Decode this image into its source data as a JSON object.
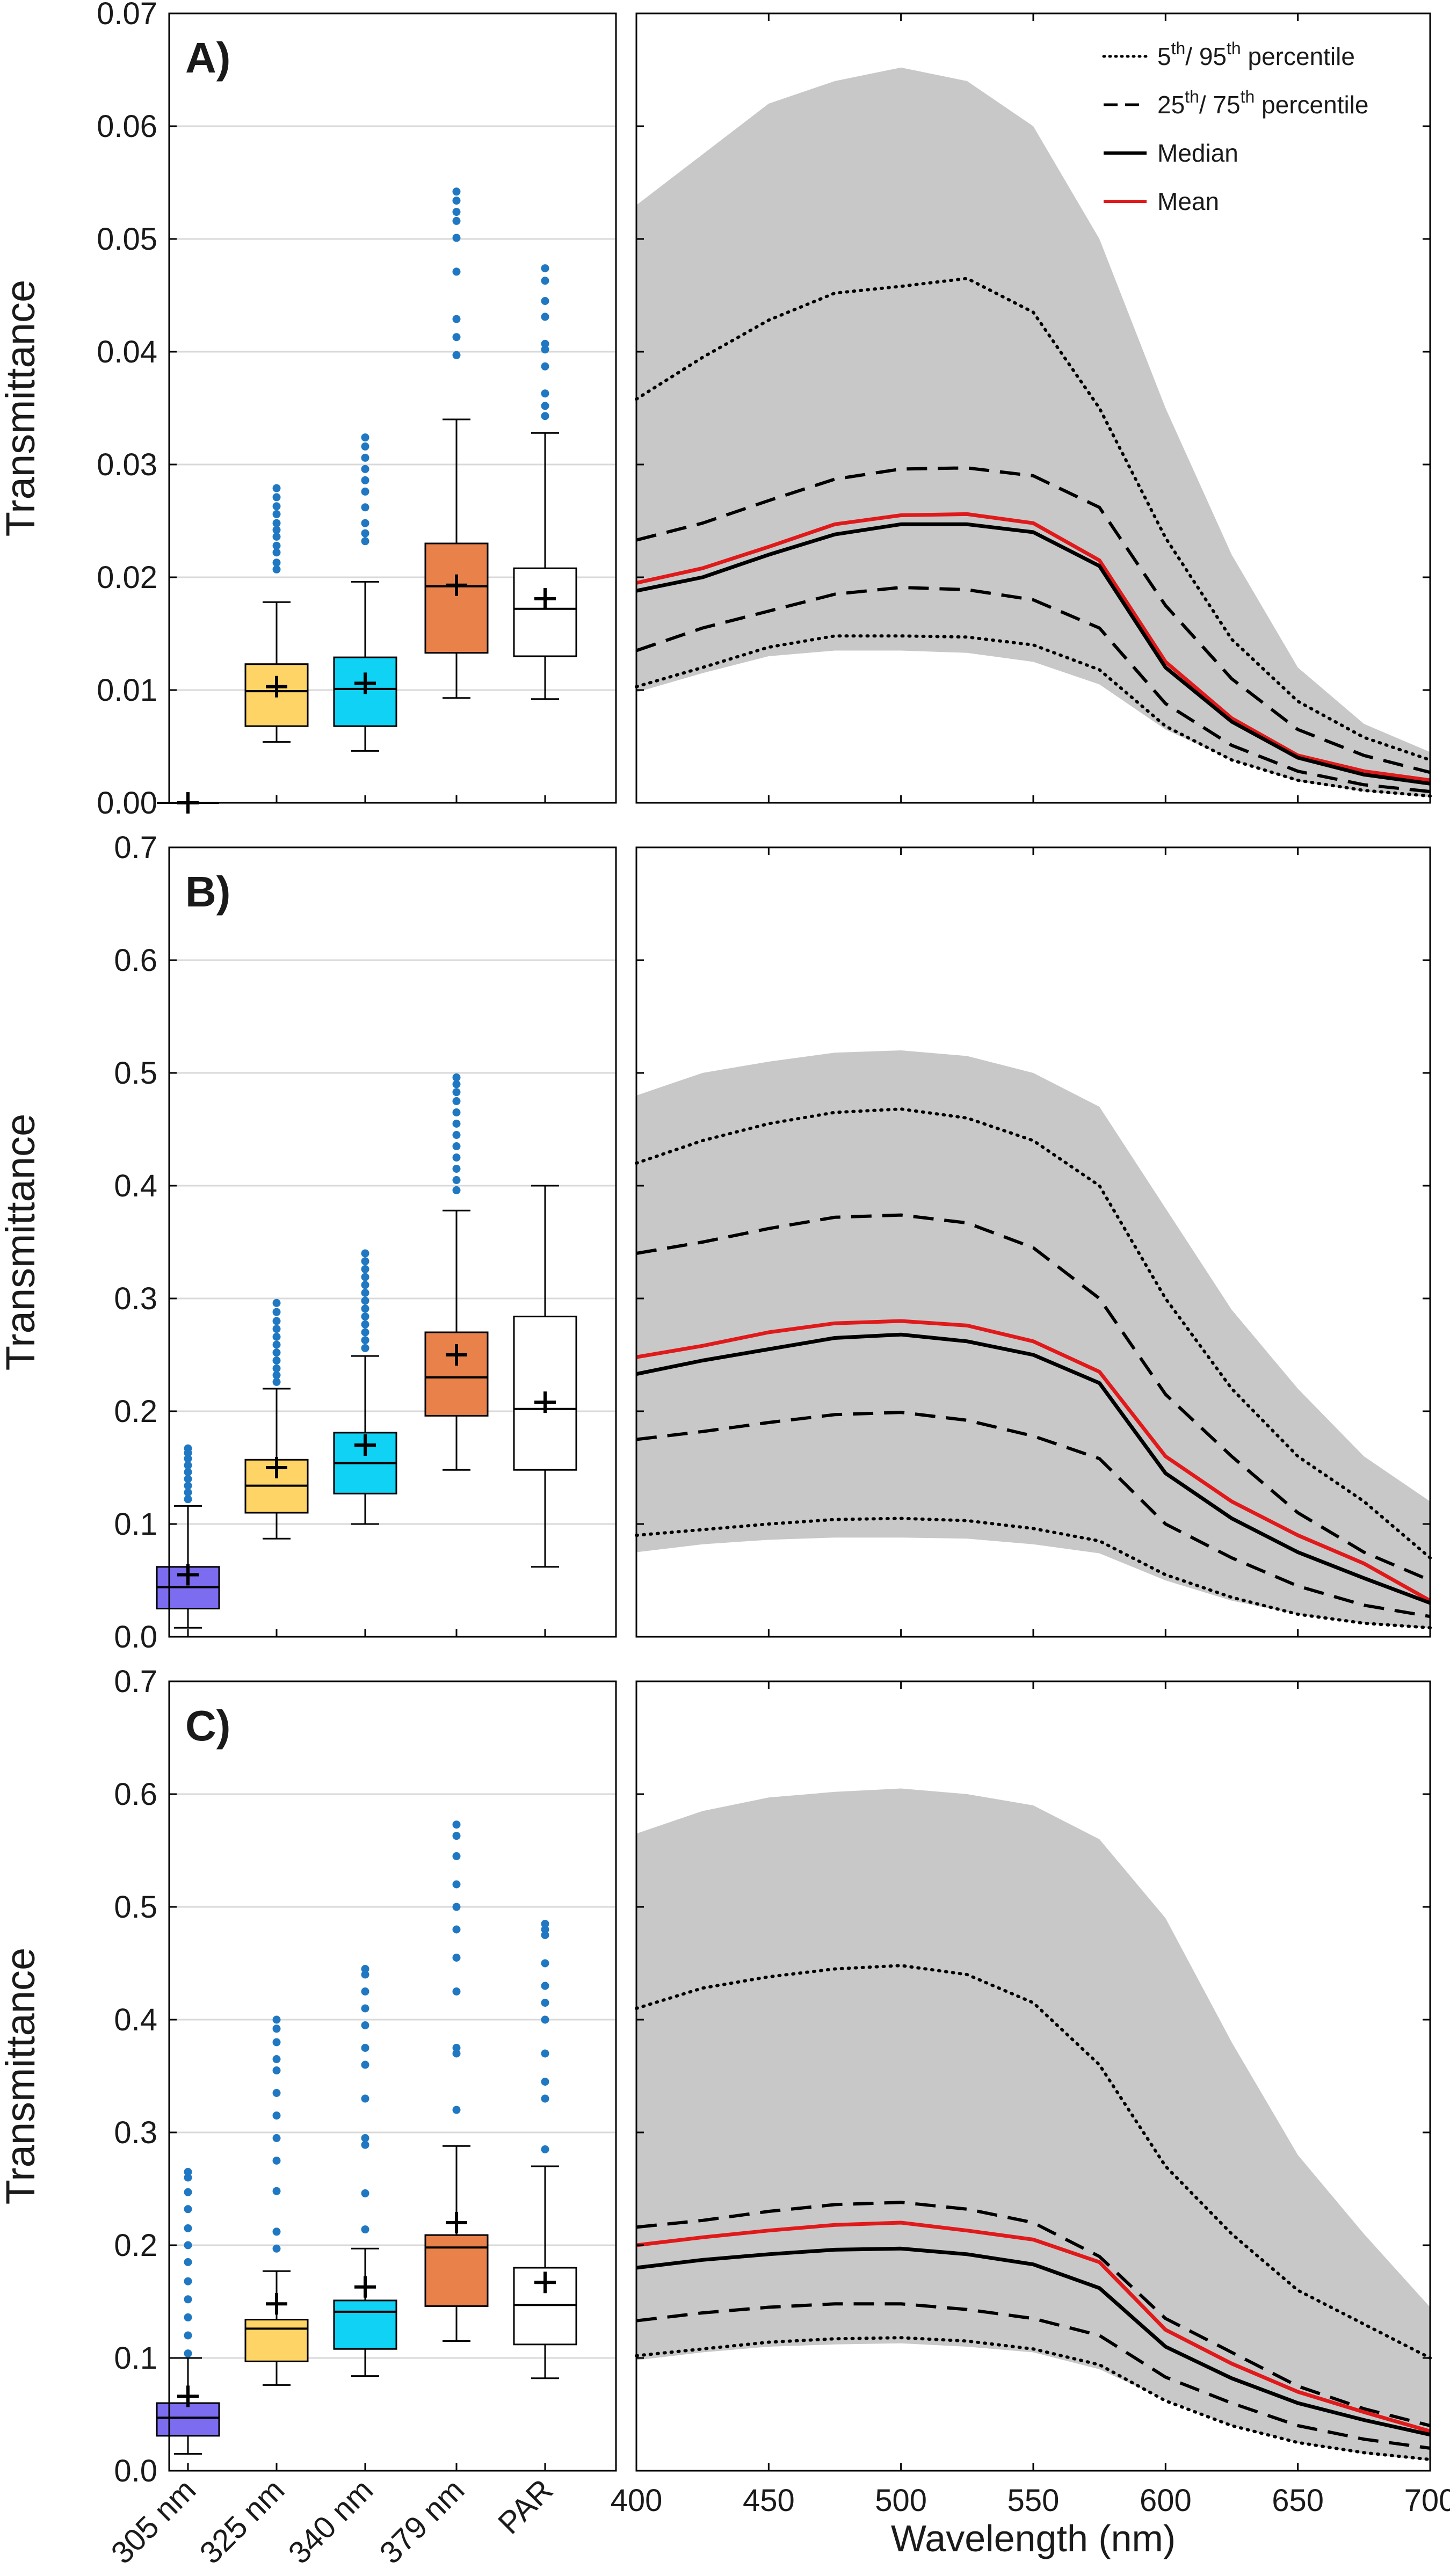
{
  "colors": {
    "band": "#c8c8c8",
    "mean": "#e0191b",
    "line": "#000000",
    "grid": "#d9d9d9",
    "outlier": "#1f78c1",
    "box_305": "#7b6cf0",
    "box_325": "#ffd466",
    "box_340": "#0fd2f5",
    "box_379": "#e8824a",
    "box_par": "#ffffff"
  },
  "legend": {
    "p5_95": {
      "s1": "5",
      "s1sup": "th",
      "s2": "/ 95",
      "s2sup": "th",
      "s3": " percentile"
    },
    "p25_75": {
      "s1": "25",
      "s1sup": "th",
      "s2": "/ 75",
      "s2sup": "th",
      "s3": " percentile"
    },
    "median": "Median",
    "mean": "Mean"
  },
  "categories": [
    "305 nm",
    "325 nm",
    "340 nm",
    "379 nm",
    "PAR"
  ],
  "category_colors": [
    "box_305",
    "box_325",
    "box_340",
    "box_379",
    "box_par"
  ],
  "xlabel_right": "Wavelength (nm)",
  "ylabel": "Transmittance",
  "chart_data": [
    {
      "panel": "A)",
      "type": "box",
      "ylabel": "Transmittance",
      "ylim": [
        0,
        0.07
      ],
      "yticks": [
        "0.00",
        "0.01",
        "0.02",
        "0.03",
        "0.04",
        "0.05",
        "0.06",
        "0.07"
      ],
      "ytick_values": [
        0,
        0.01,
        0.02,
        0.03,
        0.04,
        0.05,
        0.06,
        0.07
      ],
      "boxes": [
        {
          "category": "305 nm",
          "whisker_low": 0.0,
          "q1": 0.0,
          "median": 0.0,
          "q3": 0.0,
          "whisker_high": 0.0,
          "mean": 0.0,
          "outliers": []
        },
        {
          "category": "325 nm",
          "whisker_low": 0.0054,
          "q1": 0.0068,
          "median": 0.0099,
          "q3": 0.0123,
          "whisker_high": 0.0178,
          "mean": 0.0103,
          "outliers": [
            0.0207,
            0.0213,
            0.0222,
            0.0228,
            0.0236,
            0.0242,
            0.0248,
            0.0256,
            0.0263,
            0.0271,
            0.0279
          ]
        },
        {
          "category": "340 nm",
          "whisker_low": 0.0046,
          "q1": 0.0068,
          "median": 0.0101,
          "q3": 0.0129,
          "whisker_high": 0.0196,
          "mean": 0.0106,
          "outliers": [
            0.0232,
            0.0239,
            0.0248,
            0.0262,
            0.0276,
            0.0286,
            0.0296,
            0.0306,
            0.0316,
            0.0324
          ]
        },
        {
          "category": "379 nm",
          "whisker_low": 0.0093,
          "q1": 0.0133,
          "median": 0.0192,
          "q3": 0.023,
          "whisker_high": 0.034,
          "mean": 0.0193,
          "outliers": [
            0.0397,
            0.0413,
            0.0429,
            0.0471,
            0.0501,
            0.0516,
            0.0524,
            0.0534,
            0.0542
          ]
        },
        {
          "category": "PAR",
          "whisker_low": 0.0092,
          "q1": 0.013,
          "median": 0.0172,
          "q3": 0.0208,
          "whisker_high": 0.0328,
          "mean": 0.0181,
          "outliers": [
            0.0343,
            0.0352,
            0.0363,
            0.0387,
            0.0402,
            0.0407,
            0.0431,
            0.0445,
            0.0463,
            0.0474
          ]
        }
      ]
    },
    {
      "panel": "A)",
      "type": "line",
      "xlabel": "Wavelength (nm)",
      "xlim": [
        400,
        700
      ],
      "ylim": [
        0,
        0.07
      ],
      "x": [
        400,
        425,
        450,
        475,
        500,
        525,
        550,
        575,
        600,
        625,
        650,
        675,
        700
      ],
      "series": [
        {
          "name": "band_upper",
          "values": [
            0.053,
            0.0575,
            0.062,
            0.064,
            0.0652,
            0.064,
            0.06,
            0.05,
            0.035,
            0.022,
            0.012,
            0.007,
            0.0045
          ]
        },
        {
          "name": "band_lower",
          "values": [
            0.0098,
            0.0115,
            0.013,
            0.0135,
            0.0135,
            0.0133,
            0.0125,
            0.0105,
            0.0065,
            0.0038,
            0.0019,
            0.001,
            0.0005
          ]
        },
        {
          "name": "5th/95th percentile upper",
          "style": "dotted",
          "values": [
            0.0358,
            0.0395,
            0.0428,
            0.0452,
            0.0458,
            0.0465,
            0.0435,
            0.035,
            0.0235,
            0.0145,
            0.009,
            0.0058,
            0.0038
          ]
        },
        {
          "name": "25th/75th percentile upper",
          "style": "dashed",
          "values": [
            0.0233,
            0.0248,
            0.0268,
            0.0287,
            0.0296,
            0.0297,
            0.029,
            0.0262,
            0.0175,
            0.011,
            0.0065,
            0.0042,
            0.0027
          ]
        },
        {
          "name": "Mean",
          "style": "mean",
          "values": [
            0.0195,
            0.0208,
            0.0227,
            0.0247,
            0.0255,
            0.0256,
            0.0248,
            0.0215,
            0.0125,
            0.0075,
            0.0042,
            0.0028,
            0.002
          ]
        },
        {
          "name": "Median",
          "style": "solid",
          "values": [
            0.0188,
            0.02,
            0.022,
            0.0238,
            0.0247,
            0.0247,
            0.024,
            0.021,
            0.012,
            0.0072,
            0.004,
            0.0025,
            0.0017
          ]
        },
        {
          "name": "25th/75th percentile lower",
          "style": "dashed",
          "values": [
            0.0135,
            0.0155,
            0.017,
            0.0185,
            0.0191,
            0.0189,
            0.018,
            0.0155,
            0.0088,
            0.0051,
            0.0028,
            0.0016,
            0.001
          ]
        },
        {
          "name": "5th/95th percentile lower",
          "style": "dotted",
          "values": [
            0.0103,
            0.012,
            0.0138,
            0.0148,
            0.0148,
            0.0147,
            0.014,
            0.0118,
            0.0068,
            0.0038,
            0.002,
            0.0011,
            0.0006
          ]
        }
      ]
    },
    {
      "panel": "B)",
      "type": "box",
      "ylabel": "Transmittance",
      "ylim": [
        0,
        0.7
      ],
      "yticks": [
        "0.0",
        "0.1",
        "0.2",
        "0.3",
        "0.4",
        "0.5",
        "0.6",
        "0.7"
      ],
      "ytick_values": [
        0,
        0.1,
        0.2,
        0.3,
        0.4,
        0.5,
        0.6,
        0.7
      ],
      "boxes": [
        {
          "category": "305 nm",
          "whisker_low": 0.008,
          "q1": 0.025,
          "median": 0.044,
          "q3": 0.062,
          "whisker_high": 0.116,
          "mean": 0.055,
          "outliers": [
            0.122,
            0.128,
            0.134,
            0.14,
            0.146,
            0.152,
            0.158,
            0.163,
            0.167
          ]
        },
        {
          "category": "325 nm",
          "whisker_low": 0.087,
          "q1": 0.11,
          "median": 0.134,
          "q3": 0.157,
          "whisker_high": 0.22,
          "mean": 0.15,
          "outliers": [
            0.226,
            0.232,
            0.238,
            0.245,
            0.252,
            0.259,
            0.266,
            0.273,
            0.28,
            0.288,
            0.296
          ]
        },
        {
          "category": "340 nm",
          "whisker_low": 0.1,
          "q1": 0.127,
          "median": 0.154,
          "q3": 0.181,
          "whisker_high": 0.249,
          "mean": 0.17,
          "outliers": [
            0.256,
            0.263,
            0.27,
            0.277,
            0.284,
            0.291,
            0.298,
            0.305,
            0.312,
            0.319,
            0.326,
            0.333,
            0.34
          ]
        },
        {
          "category": "379 nm",
          "whisker_low": 0.148,
          "q1": 0.196,
          "median": 0.23,
          "q3": 0.27,
          "whisker_high": 0.378,
          "mean": 0.25,
          "outliers": [
            0.396,
            0.405,
            0.415,
            0.425,
            0.435,
            0.445,
            0.455,
            0.465,
            0.475,
            0.483,
            0.49,
            0.496
          ]
        },
        {
          "category": "PAR",
          "whisker_low": 0.062,
          "q1": 0.148,
          "median": 0.202,
          "q3": 0.284,
          "whisker_high": 0.4,
          "mean": 0.208,
          "outliers": []
        }
      ]
    },
    {
      "panel": "B)",
      "type": "line",
      "xlabel": "Wavelength (nm)",
      "xlim": [
        400,
        700
      ],
      "ylim": [
        0,
        0.7
      ],
      "x": [
        400,
        425,
        450,
        475,
        500,
        525,
        550,
        575,
        600,
        625,
        650,
        675,
        700
      ],
      "series": [
        {
          "name": "band_upper",
          "values": [
            0.48,
            0.5,
            0.51,
            0.518,
            0.52,
            0.515,
            0.5,
            0.47,
            0.38,
            0.29,
            0.22,
            0.16,
            0.12
          ]
        },
        {
          "name": "band_lower",
          "values": [
            0.075,
            0.082,
            0.086,
            0.088,
            0.088,
            0.087,
            0.082,
            0.074,
            0.05,
            0.032,
            0.02,
            0.012,
            0.008
          ]
        },
        {
          "name": "5th/95th percentile upper",
          "style": "dotted",
          "values": [
            0.42,
            0.44,
            0.455,
            0.465,
            0.468,
            0.46,
            0.44,
            0.4,
            0.3,
            0.22,
            0.16,
            0.12,
            0.07
          ]
        },
        {
          "name": "25th/75th percentile upper",
          "style": "dashed",
          "values": [
            0.34,
            0.35,
            0.362,
            0.372,
            0.374,
            0.367,
            0.345,
            0.3,
            0.215,
            0.16,
            0.11,
            0.075,
            0.05
          ]
        },
        {
          "name": "Mean",
          "style": "mean",
          "values": [
            0.248,
            0.258,
            0.27,
            0.278,
            0.28,
            0.276,
            0.262,
            0.235,
            0.16,
            0.12,
            0.09,
            0.065,
            0.032
          ]
        },
        {
          "name": "Median",
          "style": "solid",
          "values": [
            0.233,
            0.245,
            0.255,
            0.265,
            0.268,
            0.262,
            0.25,
            0.225,
            0.145,
            0.105,
            0.075,
            0.052,
            0.03
          ]
        },
        {
          "name": "25th/75th percentile lower",
          "style": "dashed",
          "values": [
            0.175,
            0.182,
            0.19,
            0.197,
            0.199,
            0.192,
            0.178,
            0.158,
            0.1,
            0.07,
            0.045,
            0.028,
            0.018
          ]
        },
        {
          "name": "5th/95th percentile lower",
          "style": "dotted",
          "values": [
            0.09,
            0.095,
            0.1,
            0.104,
            0.105,
            0.103,
            0.096,
            0.085,
            0.055,
            0.035,
            0.02,
            0.012,
            0.008
          ]
        }
      ]
    },
    {
      "panel": "C)",
      "type": "box",
      "ylabel": "Transmittance",
      "ylim": [
        0,
        0.7
      ],
      "yticks": [
        "0.0",
        "0.1",
        "0.2",
        "0.3",
        "0.4",
        "0.5",
        "0.6",
        "0.7"
      ],
      "ytick_values": [
        0,
        0.1,
        0.2,
        0.3,
        0.4,
        0.5,
        0.6,
        0.7
      ],
      "boxes": [
        {
          "category": "305 nm",
          "whisker_low": 0.015,
          "q1": 0.031,
          "median": 0.047,
          "q3": 0.06,
          "whisker_high": 0.1,
          "mean": 0.066,
          "outliers": [
            0.104,
            0.12,
            0.136,
            0.152,
            0.168,
            0.185,
            0.2,
            0.215,
            0.232,
            0.247,
            0.26,
            0.265
          ]
        },
        {
          "category": "325 nm",
          "whisker_low": 0.076,
          "q1": 0.097,
          "median": 0.126,
          "q3": 0.134,
          "whisker_high": 0.177,
          "mean": 0.148,
          "outliers": [
            0.197,
            0.212,
            0.248,
            0.275,
            0.295,
            0.315,
            0.335,
            0.355,
            0.365,
            0.38,
            0.392,
            0.4
          ]
        },
        {
          "category": "340 nm",
          "whisker_low": 0.084,
          "q1": 0.108,
          "median": 0.141,
          "q3": 0.151,
          "whisker_high": 0.197,
          "mean": 0.163,
          "outliers": [
            0.214,
            0.246,
            0.289,
            0.295,
            0.33,
            0.36,
            0.375,
            0.395,
            0.41,
            0.425,
            0.44,
            0.445
          ]
        },
        {
          "category": "379 nm",
          "whisker_low": 0.115,
          "q1": 0.146,
          "median": 0.198,
          "q3": 0.209,
          "whisker_high": 0.288,
          "mean": 0.22,
          "outliers": [
            0.32,
            0.37,
            0.375,
            0.425,
            0.455,
            0.48,
            0.5,
            0.52,
            0.545,
            0.563,
            0.573
          ]
        },
        {
          "category": "PAR",
          "whisker_low": 0.082,
          "q1": 0.112,
          "median": 0.147,
          "q3": 0.18,
          "whisker_high": 0.27,
          "mean": 0.167,
          "outliers": [
            0.285,
            0.33,
            0.345,
            0.37,
            0.4,
            0.415,
            0.43,
            0.45,
            0.475,
            0.48,
            0.485
          ]
        }
      ]
    },
    {
      "panel": "C)",
      "type": "line",
      "xlabel": "Wavelength (nm)",
      "xlim": [
        400,
        700
      ],
      "ylim": [
        0,
        0.7
      ],
      "x": [
        400,
        425,
        450,
        475,
        500,
        525,
        550,
        575,
        600,
        625,
        650,
        675,
        700
      ],
      "series": [
        {
          "name": "band_upper",
          "values": [
            0.565,
            0.585,
            0.597,
            0.602,
            0.605,
            0.6,
            0.59,
            0.56,
            0.49,
            0.38,
            0.28,
            0.21,
            0.145
          ]
        },
        {
          "name": "band_lower",
          "values": [
            0.098,
            0.105,
            0.11,
            0.112,
            0.113,
            0.11,
            0.105,
            0.09,
            0.063,
            0.04,
            0.025,
            0.015,
            0.009
          ]
        },
        {
          "name": "5th/95th percentile upper",
          "style": "dotted",
          "values": [
            0.41,
            0.428,
            0.438,
            0.445,
            0.448,
            0.44,
            0.415,
            0.36,
            0.27,
            0.21,
            0.16,
            0.13,
            0.1
          ]
        },
        {
          "name": "25th/75th percentile upper",
          "style": "dashed",
          "values": [
            0.216,
            0.222,
            0.23,
            0.236,
            0.238,
            0.232,
            0.22,
            0.19,
            0.135,
            0.105,
            0.075,
            0.055,
            0.04
          ]
        },
        {
          "name": "Mean",
          "style": "mean",
          "values": [
            0.2,
            0.207,
            0.213,
            0.218,
            0.22,
            0.213,
            0.205,
            0.185,
            0.125,
            0.095,
            0.07,
            0.052,
            0.035
          ]
        },
        {
          "name": "Median",
          "style": "solid",
          "values": [
            0.18,
            0.187,
            0.192,
            0.196,
            0.197,
            0.192,
            0.183,
            0.162,
            0.11,
            0.082,
            0.06,
            0.045,
            0.032
          ]
        },
        {
          "name": "25th/75th percentile lower",
          "style": "dashed",
          "values": [
            0.133,
            0.14,
            0.145,
            0.148,
            0.148,
            0.143,
            0.135,
            0.12,
            0.083,
            0.06,
            0.04,
            0.028,
            0.02
          ]
        },
        {
          "name": "5th/95th percentile lower",
          "style": "dotted",
          "values": [
            0.102,
            0.108,
            0.114,
            0.117,
            0.118,
            0.115,
            0.108,
            0.094,
            0.062,
            0.04,
            0.025,
            0.016,
            0.01
          ]
        }
      ]
    }
  ]
}
